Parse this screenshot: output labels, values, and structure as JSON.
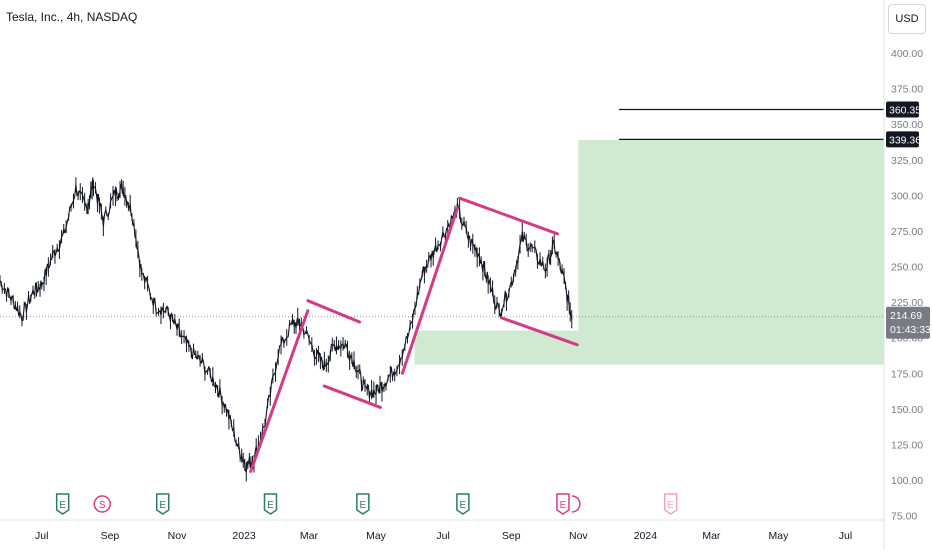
{
  "header": {
    "symbol_label": "Tesla, Inc., 4h, NASDAQ",
    "currency": "USD"
  },
  "colors": {
    "candle": "#131722",
    "pattern": "#d63a86",
    "zone_fill": "#c8e6c9",
    "axis_text": "#787b86",
    "badge_bg": "#131722",
    "price_badge_bg": "#787b86"
  },
  "chart_data": {
    "type": "line",
    "title": "Tesla, Inc., 4h, NASDAQ",
    "x_tick_labels": [
      "Jul",
      "Sep",
      "Nov",
      "2023",
      "Mar",
      "May",
      "Jul",
      "Sep",
      "Nov",
      "2024",
      "Mar",
      "May",
      "Jul"
    ],
    "x_tick_dates": [
      "2022-07-01",
      "2022-09-01",
      "2022-11-01",
      "2023-01-01",
      "2023-03-01",
      "2023-05-01",
      "2023-07-01",
      "2023-09-01",
      "2023-11-01",
      "2024-01-01",
      "2024-03-01",
      "2024-05-01",
      "2024-07-01"
    ],
    "y_ticks": [
      75,
      100,
      125,
      150,
      175,
      200,
      225,
      250,
      275,
      300,
      325,
      350,
      375,
      400
    ],
    "y_tick_labels": [
      "75.00",
      "100.00",
      "125.00",
      "150.00",
      "175.00",
      "200.00",
      "225.00",
      "250.00",
      "275.00",
      "300.00",
      "325.00",
      "350.00",
      "375.00",
      "400.00"
    ],
    "ylim": [
      75,
      422
    ],
    "grid": false,
    "series": [
      {
        "x": [
          "2022-05-24",
          "2022-06-03",
          "2022-06-13",
          "2022-06-23",
          "2022-07-01",
          "2022-07-11",
          "2022-07-21",
          "2022-08-01",
          "2022-08-11",
          "2022-08-17",
          "2022-08-26",
          "2022-09-06",
          "2022-09-13",
          "2022-09-21",
          "2022-09-30",
          "2022-10-13",
          "2022-10-24",
          "2022-11-03",
          "2022-11-14",
          "2022-11-24",
          "2022-12-06",
          "2022-12-16",
          "2022-12-27",
          "2023-01-03",
          "2023-01-10",
          "2023-01-20",
          "2023-02-01",
          "2023-02-14",
          "2023-02-22",
          "2023-03-06",
          "2023-03-15",
          "2023-03-24",
          "2023-04-03",
          "2023-04-13",
          "2023-04-21",
          "2023-05-01",
          "2023-05-10",
          "2023-05-20",
          "2023-06-01",
          "2023-06-12",
          "2023-06-22",
          "2023-07-03",
          "2023-07-14",
          "2023-07-24",
          "2023-08-03",
          "2023-08-11",
          "2023-08-21",
          "2023-09-01",
          "2023-09-11",
          "2023-09-20",
          "2023-10-02",
          "2023-10-10",
          "2023-10-19",
          "2023-10-26"
        ],
        "values": [
          240,
          228,
          215,
          232,
          238,
          258,
          272,
          305,
          290,
          310,
          282,
          302,
          305,
          288,
          245,
          222,
          218,
          203,
          190,
          182,
          168,
          150,
          122,
          110,
          115,
          140,
          190,
          210,
          210,
          190,
          180,
          195,
          195,
          180,
          163,
          162,
          170,
          180,
          205,
          245,
          260,
          275,
          290,
          270,
          258,
          240,
          218,
          238,
          270,
          262,
          248,
          265,
          240,
          213
        ]
      }
    ],
    "pattern_lines": [
      {
        "x1": "2023-02-28",
        "y1": 226,
        "x2": "2023-04-16",
        "y2": 211
      },
      {
        "x1": "2023-03-15",
        "y1": 166,
        "x2": "2023-05-05",
        "y2": 151
      },
      {
        "x1": "2023-07-16",
        "y1": 298,
        "x2": "2023-10-13",
        "y2": 273
      },
      {
        "x1": "2023-08-23",
        "y1": 214,
        "x2": "2023-10-31",
        "y2": 195
      },
      {
        "x1": "2023-01-07",
        "y1": 106,
        "x2": "2023-02-28",
        "y2": 219
      },
      {
        "x1": "2023-05-25",
        "y1": 175,
        "x2": "2023-07-14",
        "y2": 291
      }
    ],
    "zones": [
      {
        "x1": "2023-11-01",
        "x2": "2024-08-05",
        "y1": 205,
        "y2": 339
      },
      {
        "x1": "2023-06-05",
        "x2": "2024-08-05",
        "y1": 181,
        "y2": 205
      }
    ],
    "hlines": [
      {
        "x1": "2023-12-08",
        "x2": "2024-08-05",
        "y": 360.35,
        "label": "360.35"
      },
      {
        "x1": "2023-12-08",
        "x2": "2024-08-05",
        "y": 339.36,
        "label": "339.36"
      }
    ],
    "current_price": {
      "value": 214.69,
      "label": "214.69",
      "countdown": "01:43:33"
    },
    "events": [
      {
        "x": "2022-07-20",
        "label": "E",
        "kind": "earnings"
      },
      {
        "x": "2022-08-25",
        "label": "S",
        "kind": "split"
      },
      {
        "x": "2022-10-19",
        "label": "E",
        "kind": "earnings"
      },
      {
        "x": "2023-01-25",
        "label": "E",
        "kind": "earnings"
      },
      {
        "x": "2023-04-19",
        "label": "E",
        "kind": "earnings"
      },
      {
        "x": "2023-07-19",
        "label": "E",
        "kind": "earnings"
      },
      {
        "x": "2023-10-18",
        "label": "E",
        "kind": "earnings-active"
      },
      {
        "x": "2024-01-24",
        "label": "E",
        "kind": "earnings-future"
      }
    ]
  }
}
